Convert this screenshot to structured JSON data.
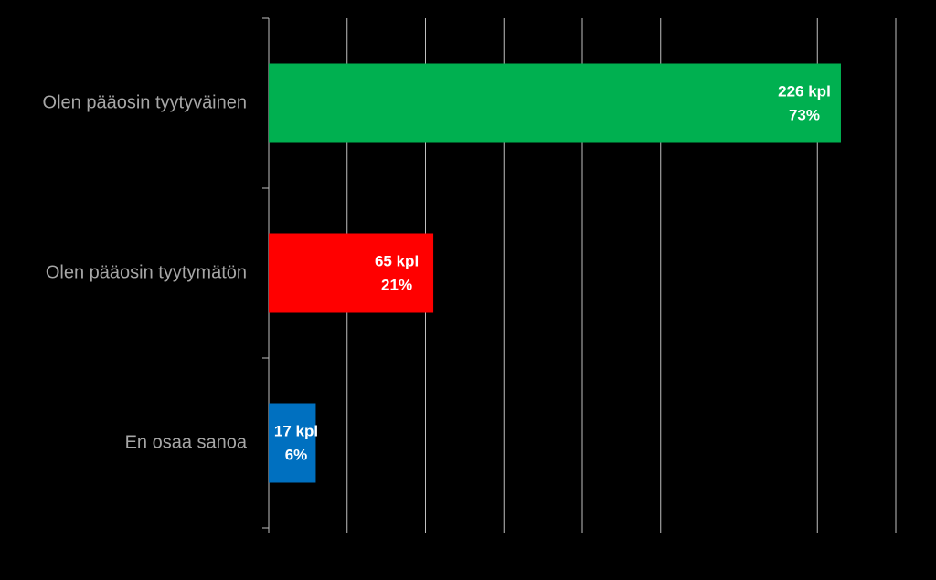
{
  "chart_data": {
    "type": "bar",
    "orientation": "horizontal",
    "categories": [
      "Olen pääosin tyytyväinen",
      "Olen pääosin tyytymätön",
      "En osaa sanoa"
    ],
    "values": [
      73,
      21,
      6
    ],
    "value_labels": [
      "73%",
      "21%",
      "6%"
    ],
    "count_labels": [
      "226 kpl",
      "65 kpl",
      "17 kpl"
    ],
    "colors": [
      "#00b050",
      "#ff0000",
      "#0070c0"
    ],
    "xlim": [
      0,
      80
    ],
    "xticks": [
      0,
      10,
      20,
      30,
      40,
      50,
      60,
      70,
      80
    ],
    "grid": true
  }
}
